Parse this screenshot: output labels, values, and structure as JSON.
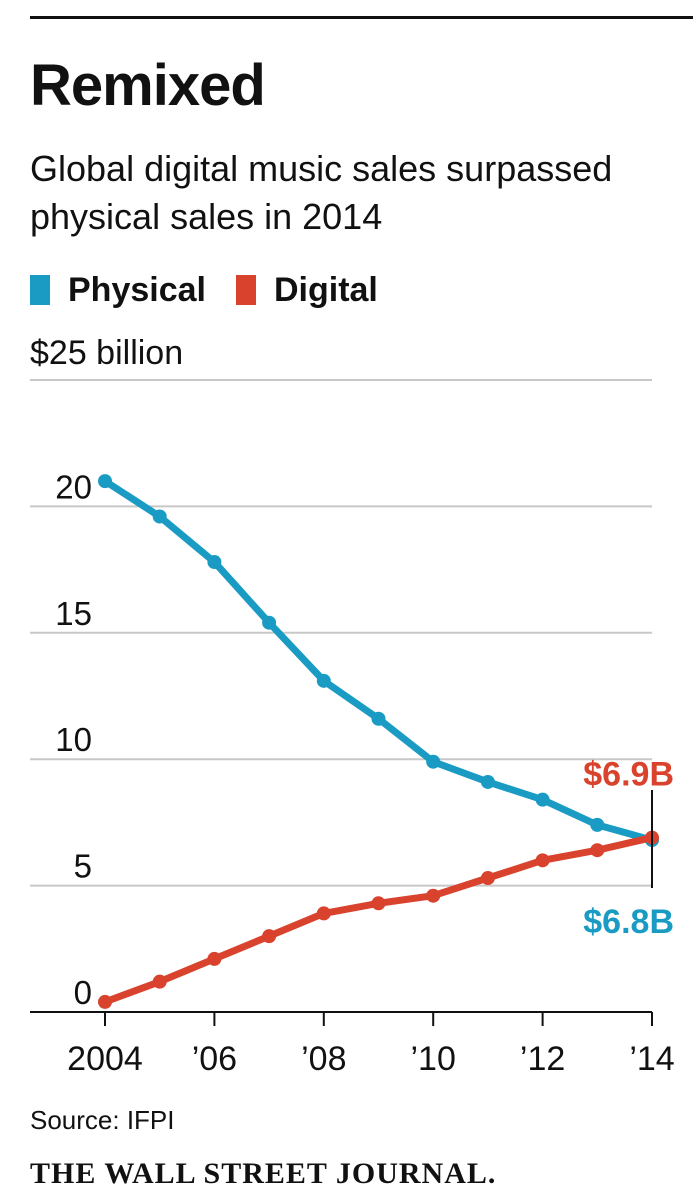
{
  "header": {
    "title": "Remixed",
    "subtitle": "Global digital music sales surpassed physical sales in 2014"
  },
  "legend": {
    "items": [
      {
        "label": "Physical",
        "color": "#1a9bc4"
      },
      {
        "label": "Digital",
        "color": "#d9432e"
      }
    ]
  },
  "chart_data": {
    "type": "line",
    "title": "Remixed",
    "subtitle": "Global digital music sales surpassed physical sales in 2014",
    "unit_label": "$25 billion",
    "xlabel": "",
    "ylabel": "",
    "x": [
      2004,
      2005,
      2006,
      2007,
      2008,
      2009,
      2010,
      2011,
      2012,
      2013,
      2014
    ],
    "x_tick_values": [
      2004,
      2006,
      2008,
      2010,
      2012,
      2014
    ],
    "x_tick_labels": [
      "2004",
      "’06",
      "’08",
      "’10",
      "’12",
      "’14"
    ],
    "ylim": [
      0,
      25
    ],
    "y_ticks": [
      0,
      5,
      10,
      15,
      20,
      25
    ],
    "y_tick_labels": [
      "0",
      "5",
      "10",
      "15",
      "20",
      ""
    ],
    "grid": true,
    "legend_position": "top-left",
    "series": [
      {
        "name": "Physical",
        "color": "#1a9bc4",
        "values": [
          21.0,
          19.6,
          17.8,
          15.4,
          13.1,
          11.6,
          9.9,
          9.1,
          8.4,
          7.4,
          6.8
        ]
      },
      {
        "name": "Digital",
        "color": "#d9432e",
        "values": [
          0.4,
          1.2,
          2.1,
          3.0,
          3.9,
          4.3,
          4.6,
          5.3,
          6.0,
          6.4,
          6.9
        ]
      }
    ],
    "annotations": [
      {
        "text": "$6.9B",
        "series": "Digital",
        "x": 2014,
        "position": "above"
      },
      {
        "text": "$6.8B",
        "series": "Physical",
        "x": 2014,
        "position": "below"
      }
    ],
    "source": "Source: IFPI"
  },
  "footer": {
    "source": "Source: IFPI",
    "brand": "THE WALL STREET JOURNAL."
  }
}
